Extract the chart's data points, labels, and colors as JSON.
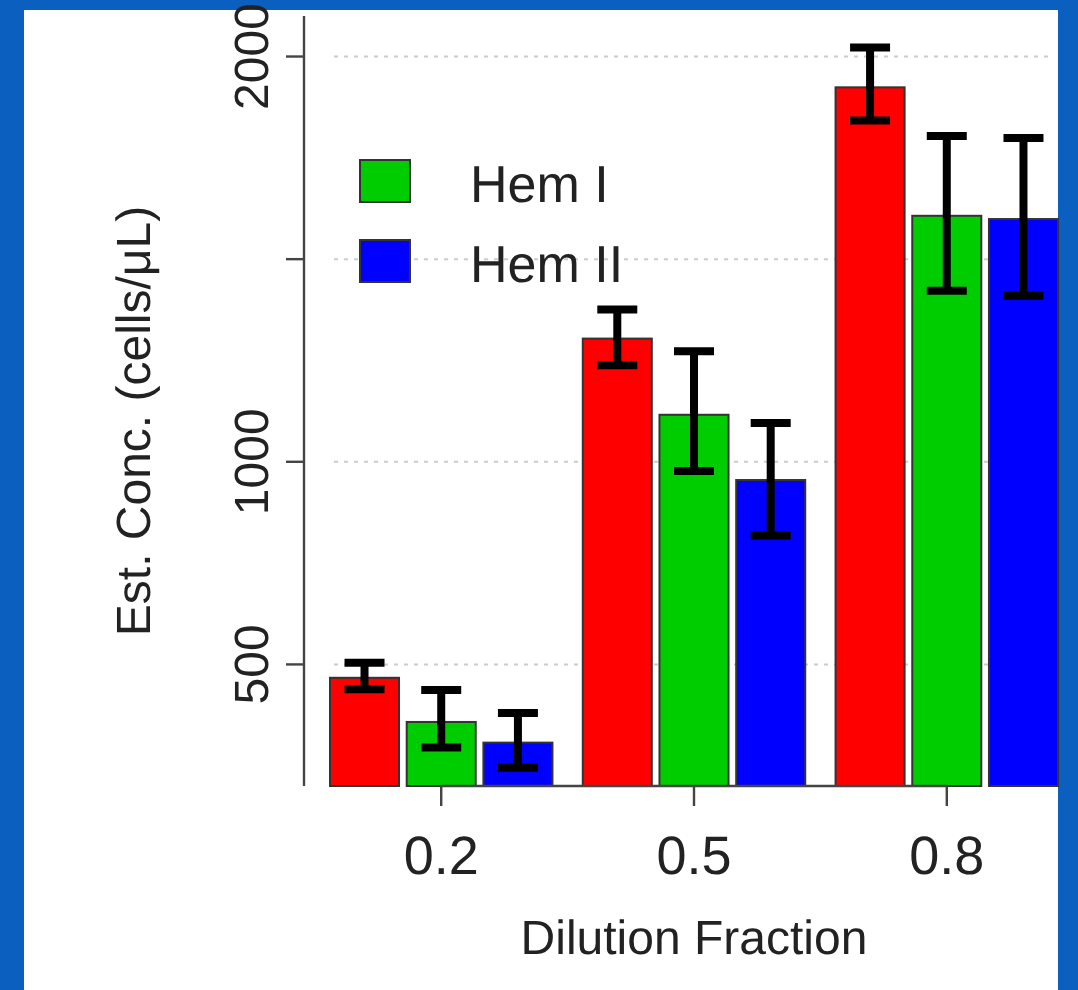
{
  "chart_data": {
    "type": "bar",
    "xlabel": "Dilution Fraction",
    "ylabel": "Est. Conc. (cells/μL)",
    "categories": [
      "0.2",
      "0.5",
      "0.8"
    ],
    "series": [
      {
        "color": "#ff0000",
        "values": [
          467,
          1304,
          1924
        ],
        "errors": [
          [
            439,
            504
          ],
          [
            1238,
            1376
          ],
          [
            1842,
            2022
          ]
        ]
      },
      {
        "name": "Hem I",
        "color": "#00cd00",
        "values": [
          358,
          1116,
          1607
        ],
        "errors": [
          [
            295,
            437
          ],
          [
            977,
            1273
          ],
          [
            1422,
            1804
          ]
        ]
      },
      {
        "name": "Hem II",
        "color": "#0000ff",
        "values": [
          307,
          955,
          1599
        ],
        "errors": [
          [
            245,
            380
          ],
          [
            818,
            1096
          ],
          [
            1410,
            1799
          ]
        ]
      }
    ],
    "ylim": [
      200,
      2100
    ],
    "yticks": [
      500,
      1000,
      {
        "value": 1500,
        "label": null
      },
      2000
    ],
    "grid": "y",
    "legend": "top left"
  }
}
